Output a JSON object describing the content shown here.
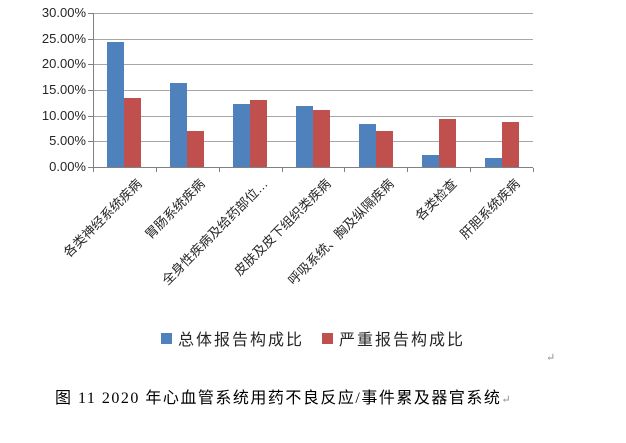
{
  "chart_data": {
    "type": "bar",
    "title": "",
    "categories": [
      "各类神经系统疾病",
      "胃肠系统疾病",
      "全身性疾病及给药部位…",
      "皮肤及皮下组织类疾病",
      "呼吸系统、胸及纵隔疾病",
      "各类检查",
      "肝胆系统疾病"
    ],
    "series": [
      {
        "name": "总体报告构成比",
        "color": "#4F81BD",
        "values": [
          24.4,
          16.4,
          12.2,
          11.9,
          8.3,
          2.4,
          1.7
        ]
      },
      {
        "name": "严重报告构成比",
        "color": "#C0504D",
        "values": [
          13.4,
          7.0,
          13.0,
          11.1,
          7.1,
          9.4,
          8.7
        ]
      }
    ],
    "ylim": [
      0,
      30
    ],
    "ytick_step": 5,
    "yticks": [
      "30.00%",
      "25.00%",
      "20.00%",
      "15.00%",
      "10.00%",
      "5.00%",
      "0.00%"
    ],
    "ytick_format": "percent2",
    "grid": true,
    "legend_position": "bottom",
    "colors": {
      "grid": "#a6a6a6",
      "axis": "#808080",
      "tick_text": "#262626"
    }
  },
  "caption": {
    "text": "图 11  2020 年心血管系统用药不良反应/事件累及器官系统",
    "return_mark": "↵"
  },
  "document": {
    "stray_return_mark": "↵"
  }
}
